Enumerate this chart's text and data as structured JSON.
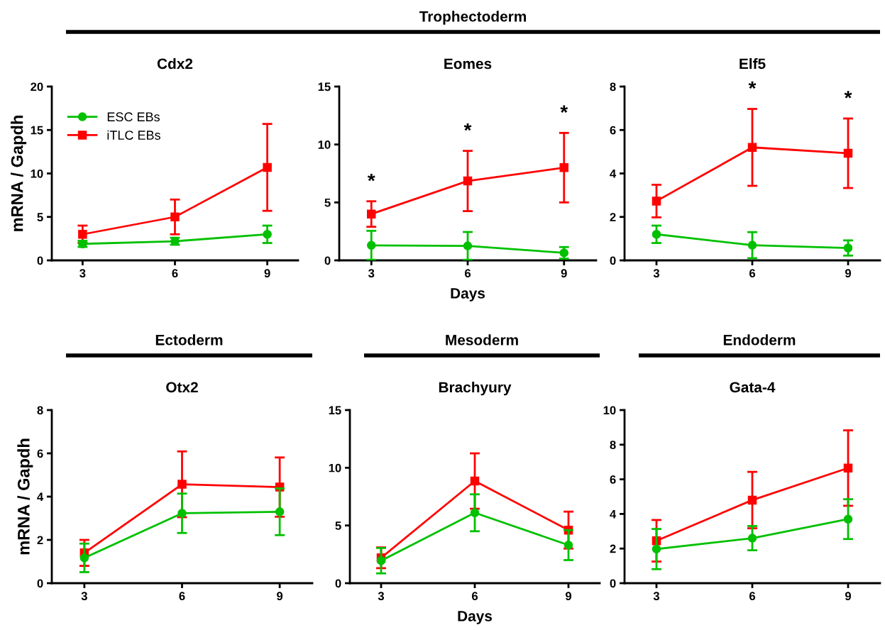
{
  "chart_data": [
    {
      "type": "line",
      "title": "Cdx2",
      "ylabel": "mRNA / Gapdh",
      "x": [
        3,
        6,
        9
      ],
      "xlim": [
        2,
        10
      ],
      "xticks": [
        3,
        6,
        9
      ],
      "ylim": [
        0,
        20
      ],
      "yticks": [
        0,
        5,
        10,
        15,
        20
      ],
      "legend": "top left",
      "series": [
        {
          "name": "ESC EBs",
          "color": "#00c000",
          "marker": "circle",
          "values": [
            1.9,
            2.2,
            3.0
          ],
          "errors": [
            0.35,
            0.4,
            1.0
          ]
        },
        {
          "name": "iTLC EBs",
          "color": "#ff0000",
          "marker": "square",
          "values": [
            3.0,
            5.0,
            10.7
          ],
          "errors": [
            1.0,
            2.0,
            5.0
          ]
        }
      ]
    },
    {
      "type": "line",
      "title": "Eomes",
      "xlabel": "Days",
      "x": [
        3,
        6,
        9
      ],
      "xlim": [
        2,
        10
      ],
      "xticks": [
        3,
        6,
        9
      ],
      "ylim": [
        0,
        15
      ],
      "yticks": [
        0,
        5,
        10,
        15
      ],
      "annotations": [
        "Trophectoderm",
        {
          "text": "*",
          "x": 3,
          "y": 5.1
        },
        {
          "text": "*",
          "x": 6,
          "y": 9.45
        },
        {
          "text": "*",
          "x": 9,
          "y": 11.0
        }
      ],
      "series": [
        {
          "color": "#00c000",
          "marker": "circle",
          "values": [
            1.3,
            1.25,
            0.65
          ],
          "errors": [
            1.25,
            1.2,
            0.5
          ]
        },
        {
          "color": "#ff0000",
          "marker": "square",
          "values": [
            4.0,
            6.85,
            8.0
          ],
          "errors": [
            1.1,
            2.6,
            3.0
          ]
        }
      ]
    },
    {
      "type": "line",
      "title": "Elf5",
      "x": [
        3,
        6,
        9
      ],
      "xlim": [
        2,
        10
      ],
      "xticks": [
        3,
        6,
        9
      ],
      "ylim": [
        0,
        8
      ],
      "yticks": [
        0,
        2,
        4,
        6,
        8
      ],
      "annotations": [
        {
          "text": "*",
          "x": 6,
          "y": 6.97
        },
        {
          "text": "*",
          "x": 9,
          "y": 6.53
        }
      ],
      "series": [
        {
          "color": "#00c000",
          "marker": "circle",
          "values": [
            1.2,
            0.7,
            0.57
          ],
          "errors": [
            0.4,
            0.6,
            0.35
          ]
        },
        {
          "color": "#ff0000",
          "marker": "square",
          "values": [
            2.73,
            5.2,
            4.93
          ],
          "errors": [
            0.75,
            1.77,
            1.6
          ]
        }
      ]
    },
    {
      "type": "line",
      "title": "Otx2",
      "ylabel": "mRNA / Gapdh",
      "x": [
        3,
        6,
        9
      ],
      "xlim": [
        2,
        10
      ],
      "xticks": [
        3,
        6,
        9
      ],
      "ylim": [
        0,
        8
      ],
      "yticks": [
        0,
        2,
        4,
        6,
        8
      ],
      "annotations": [
        "Ectoderm"
      ],
      "series": [
        {
          "color": "#00c000",
          "marker": "circle",
          "values": [
            1.17,
            3.23,
            3.3
          ],
          "errors": [
            0.66,
            0.91,
            1.08
          ]
        },
        {
          "color": "#ff0000",
          "marker": "square",
          "values": [
            1.4,
            4.57,
            4.44
          ],
          "errors": [
            0.6,
            1.52,
            1.37
          ]
        }
      ]
    },
    {
      "type": "line",
      "title": "Brachyury",
      "xlabel": "Days",
      "x": [
        3,
        6,
        9
      ],
      "xlim": [
        2,
        10
      ],
      "xticks": [
        3,
        6,
        9
      ],
      "ylim": [
        0,
        15
      ],
      "yticks": [
        0,
        5,
        10,
        15
      ],
      "annotations": [
        "Mesoderm"
      ],
      "series": [
        {
          "color": "#00c000",
          "marker": "circle",
          "values": [
            1.95,
            6.1,
            3.3
          ],
          "errors": [
            1.1,
            1.6,
            1.3
          ]
        },
        {
          "color": "#ff0000",
          "marker": "square",
          "values": [
            2.2,
            8.85,
            4.6
          ],
          "errors": [
            0.9,
            2.4,
            1.6
          ]
        }
      ]
    },
    {
      "type": "line",
      "title": "Gata-4",
      "x": [
        3,
        6,
        9
      ],
      "xlim": [
        2,
        10
      ],
      "xticks": [
        3,
        6,
        9
      ],
      "ylim": [
        0,
        10
      ],
      "yticks": [
        0,
        2,
        4,
        6,
        8,
        10
      ],
      "annotations": [
        "Endoderm"
      ],
      "series": [
        {
          "color": "#00c000",
          "marker": "circle",
          "values": [
            1.97,
            2.6,
            3.7
          ],
          "errors": [
            1.16,
            0.7,
            1.15
          ]
        },
        {
          "color": "#ff0000",
          "marker": "square",
          "values": [
            2.45,
            4.8,
            6.65
          ],
          "errors": [
            1.2,
            1.63,
            2.18
          ]
        }
      ]
    }
  ]
}
